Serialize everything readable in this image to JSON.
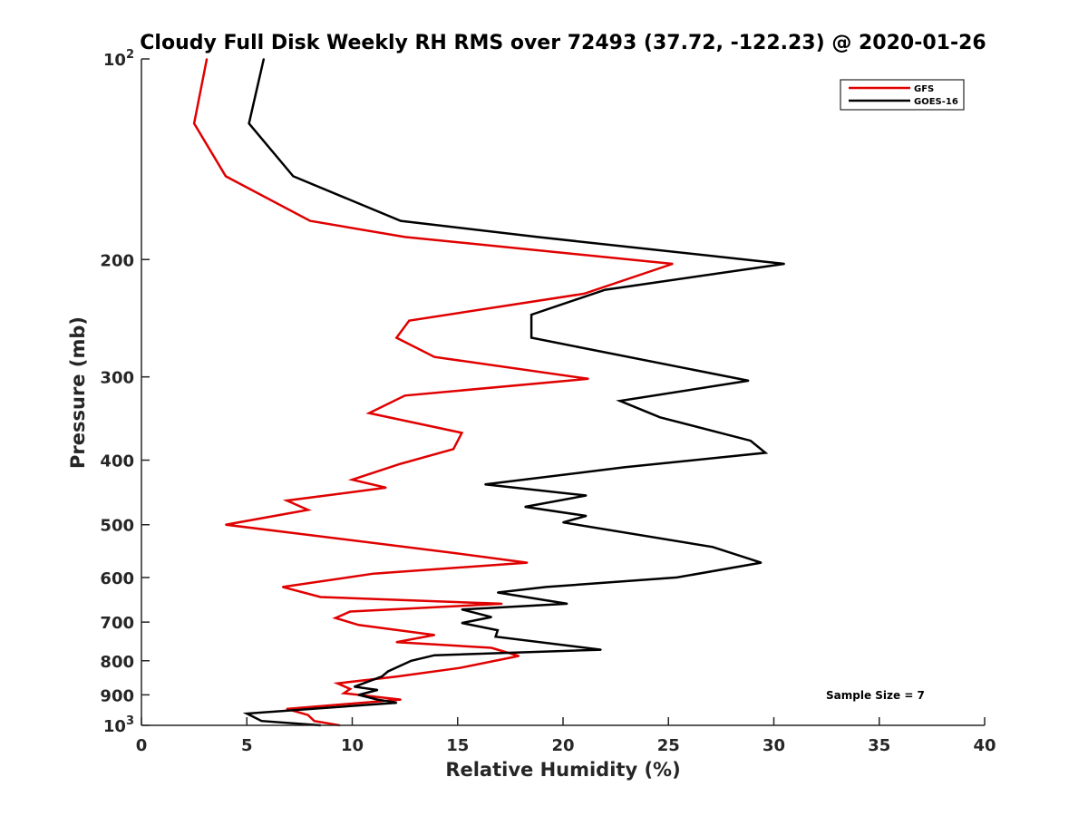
{
  "chart_data": {
    "type": "line",
    "title": "Cloudy Full Disk Weekly RH RMS over 72493 (37.72, -122.23) @ 2020-01-26",
    "xlabel": "Relative Humidity (%)",
    "ylabel": "Pressure (mb)",
    "xlim": [
      0,
      40
    ],
    "ylim": [
      100,
      1000
    ],
    "y_scale": "log",
    "y_reversed": true,
    "grid": false,
    "legend_position": "top-right",
    "x_ticks": [
      0,
      5,
      10,
      15,
      20,
      25,
      30,
      35,
      40
    ],
    "x_tick_labels": [
      "0",
      "5",
      "10",
      "15",
      "20",
      "25",
      "30",
      "35",
      "40"
    ],
    "y_ticks": [
      100,
      200,
      300,
      400,
      500,
      600,
      700,
      800,
      900,
      1000
    ],
    "y_tick_labels": [
      {
        "base": "10",
        "exp": "2"
      },
      {
        "base": "200",
        "exp": ""
      },
      {
        "base": "300",
        "exp": ""
      },
      {
        "base": "400",
        "exp": ""
      },
      {
        "base": "500",
        "exp": ""
      },
      {
        "base": "600",
        "exp": ""
      },
      {
        "base": "700",
        "exp": ""
      },
      {
        "base": "800",
        "exp": ""
      },
      {
        "base": "900",
        "exp": ""
      },
      {
        "base": "10",
        "exp": "3"
      }
    ],
    "annotation": "Sample Size = 7",
    "series": [
      {
        "name": "GFS",
        "color": "#e00000",
        "points": [
          [
            3.1,
            100
          ],
          [
            2.5,
            125
          ],
          [
            4.0,
            150
          ],
          [
            8.0,
            175
          ],
          [
            12.5,
            185
          ],
          [
            25.2,
            203
          ],
          [
            21.0,
            225
          ],
          [
            12.7,
            247
          ],
          [
            12.1,
            262
          ],
          [
            13.9,
            280
          ],
          [
            21.2,
            302
          ],
          [
            12.5,
            320
          ],
          [
            10.8,
            340
          ],
          [
            15.2,
            364
          ],
          [
            14.8,
            385
          ],
          [
            12.3,
            405
          ],
          [
            10.0,
            428
          ],
          [
            11.6,
            440
          ],
          [
            6.9,
            460
          ],
          [
            7.9,
            475
          ],
          [
            4.0,
            500
          ],
          [
            14.6,
            550
          ],
          [
            18.3,
            570
          ],
          [
            11.0,
            592
          ],
          [
            6.7,
            620
          ],
          [
            8.5,
            642
          ],
          [
            17.1,
            657
          ],
          [
            9.9,
            675
          ],
          [
            9.2,
            690
          ],
          [
            10.3,
            707
          ],
          [
            13.9,
            732
          ],
          [
            12.1,
            750
          ],
          [
            16.6,
            765
          ],
          [
            17.9,
            787
          ],
          [
            15.1,
            820
          ],
          [
            12.1,
            845
          ],
          [
            9.3,
            865
          ],
          [
            9.9,
            882
          ],
          [
            9.6,
            895
          ],
          [
            12.3,
            915
          ],
          [
            6.9,
            945
          ],
          [
            7.9,
            965
          ],
          [
            8.2,
            985
          ],
          [
            9.4,
            1000
          ]
        ]
      },
      {
        "name": "GOES-16",
        "color": "#000000",
        "points": [
          [
            5.8,
            100
          ],
          [
            5.1,
            125
          ],
          [
            7.2,
            150
          ],
          [
            12.3,
            175
          ],
          [
            18.8,
            185
          ],
          [
            30.5,
            203
          ],
          [
            22.0,
            222
          ],
          [
            18.5,
            242
          ],
          [
            18.5,
            262
          ],
          [
            28.8,
            304
          ],
          [
            22.7,
            326
          ],
          [
            24.6,
            345
          ],
          [
            28.9,
            374
          ],
          [
            29.6,
            390
          ],
          [
            22.9,
            410
          ],
          [
            16.3,
            435
          ],
          [
            21.1,
            452
          ],
          [
            18.2,
            470
          ],
          [
            21.1,
            485
          ],
          [
            20.0,
            496
          ],
          [
            27.1,
            540
          ],
          [
            29.4,
            570
          ],
          [
            25.4,
            600
          ],
          [
            19.2,
            620
          ],
          [
            16.9,
            632
          ],
          [
            20.2,
            657
          ],
          [
            15.2,
            670
          ],
          [
            16.6,
            688
          ],
          [
            15.2,
            702
          ],
          [
            16.9,
            720
          ],
          [
            16.8,
            736
          ],
          [
            21.8,
            770
          ],
          [
            13.9,
            785
          ],
          [
            12.8,
            800
          ],
          [
            11.7,
            830
          ],
          [
            11.4,
            845
          ],
          [
            10.1,
            875
          ],
          [
            11.2,
            885
          ],
          [
            10.3,
            900
          ],
          [
            11.2,
            915
          ],
          [
            12.1,
            925
          ],
          [
            5.0,
            960
          ],
          [
            5.7,
            985
          ],
          [
            8.5,
            1000
          ]
        ]
      }
    ]
  }
}
